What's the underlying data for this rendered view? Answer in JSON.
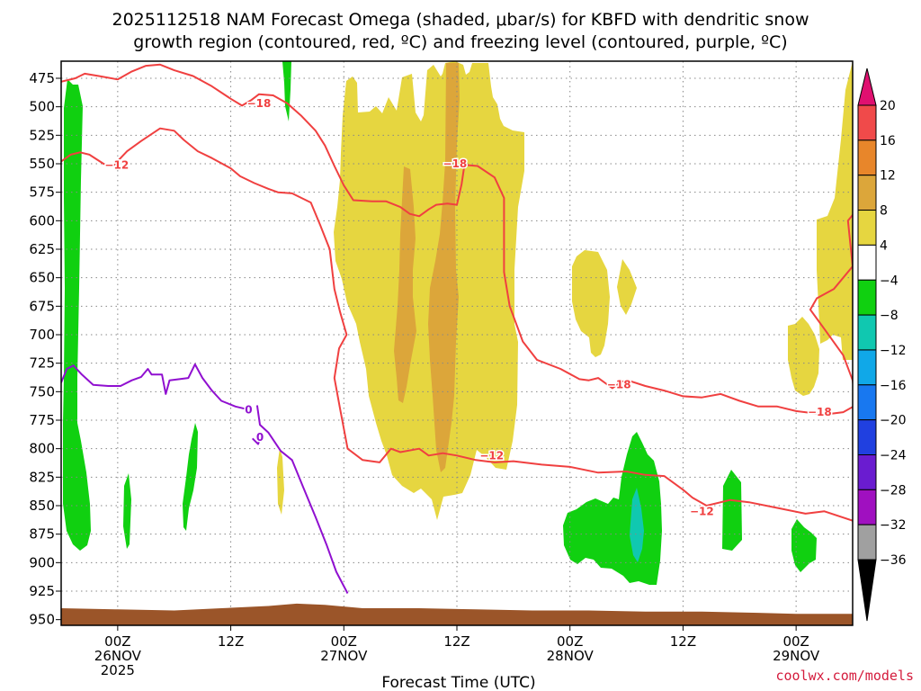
{
  "title_line1": "2025112518 NAM Forecast Omega (shaded, μbar/s) for KBFD with dendritic snow",
  "title_line2": "growth region (contoured, red, ºC) and freezing level (contoured, purple, ºC)",
  "credit": "coolwx.com/models",
  "colors": {
    "temp_contour": "#f04040",
    "freezing_contour": "#9010d0",
    "ground": "#9b5529",
    "omega_4_8": "#e6d640",
    "omega_8_12": "#dca63a",
    "omega_neg4_neg8": "#10d010",
    "omega_neg12_neg16": "#10c8b0"
  },
  "chart_data": {
    "type": "heatmap",
    "title": "2025112518 NAM Forecast Omega (shaded, μbar/s) for KBFD with dendritic snow growth region (contoured, red, ºC) and freezing level (contoured, purple, ºC)",
    "xlabel": "Forecast Time (UTC)",
    "ylabel": "",
    "x_unit": "hours after 2025-11-25 18Z",
    "xlim": [
      0,
      84
    ],
    "ylim": [
      955,
      460
    ],
    "y_scale": "pressure (hPa), inverted",
    "grid": true,
    "y_ticks": [
      "475",
      "500",
      "525",
      "550",
      "575",
      "600",
      "625",
      "650",
      "675",
      "700",
      "725",
      "750",
      "775",
      "800",
      "825",
      "850",
      "875",
      "900",
      "925",
      "950"
    ],
    "x_ticks": [
      {
        "h": 6,
        "line1": "00Z",
        "line2": "26NOV",
        "line3": "2025"
      },
      {
        "h": 18,
        "line1": "12Z",
        "line2": "",
        "line3": ""
      },
      {
        "h": 30,
        "line1": "00Z",
        "line2": "27NOV",
        "line3": ""
      },
      {
        "h": 42,
        "line1": "12Z",
        "line2": "",
        "line3": ""
      },
      {
        "h": 54,
        "line1": "00Z",
        "line2": "28NOV",
        "line3": ""
      },
      {
        "h": 66,
        "line1": "12Z",
        "line2": "",
        "line3": ""
      },
      {
        "h": 78,
        "line1": "00Z",
        "line2": "29NOV",
        "line3": ""
      }
    ],
    "colorbar": {
      "levels": [
        "20",
        "16",
        "12",
        "8",
        "4",
        "−4",
        "−8",
        "−12",
        "−16",
        "−20",
        "−24",
        "−28",
        "−32",
        "−36"
      ],
      "colors": [
        "#e01070",
        "#f04a4a",
        "#e8862a",
        "#dca63a",
        "#e6d640",
        "#ffffff",
        "#10d010",
        "#10c8b0",
        "#10a8e8",
        "#1878f0",
        "#2040e0",
        "#6a1cd0",
        "#a010c0",
        "#a0a0a0",
        "#000000"
      ]
    },
    "contour_labels": [
      {
        "text": "−18",
        "h": 21.0,
        "p": 497,
        "series": "temp"
      },
      {
        "text": "−12",
        "h": 5.9,
        "p": 551,
        "series": "temp"
      },
      {
        "text": "−18",
        "h": 41.8,
        "p": 550,
        "series": "temp"
      },
      {
        "text": "−18",
        "h": 59.2,
        "p": 744,
        "series": "temp"
      },
      {
        "text": "−18",
        "h": 80.5,
        "p": 768,
        "series": "temp"
      },
      {
        "text": "−12",
        "h": 45.7,
        "p": 806,
        "series": "temp"
      },
      {
        "text": "−12",
        "h": 68.0,
        "p": 855,
        "series": "temp"
      },
      {
        "text": "0",
        "h": 19.9,
        "p": 766,
        "series": "freezing"
      },
      {
        "text": "0",
        "h": 21.1,
        "p": 790,
        "series": "freezing"
      }
    ],
    "series": [
      {
        "kind": "temp",
        "points": [
          [
            0,
            478
          ],
          [
            1.5,
            475
          ],
          [
            2.5,
            471
          ],
          [
            4,
            473
          ],
          [
            6,
            476
          ],
          [
            7.5,
            469
          ],
          [
            9,
            464
          ],
          [
            10.5,
            463
          ],
          [
            12,
            468
          ],
          [
            14,
            473
          ],
          [
            16,
            482
          ],
          [
            18,
            493
          ],
          [
            19.2,
            499
          ],
          [
            20.2,
            494
          ],
          [
            21,
            489
          ],
          [
            22.5,
            490
          ],
          [
            24,
            497
          ],
          [
            25.5,
            508
          ],
          [
            27,
            521
          ],
          [
            28,
            534
          ],
          [
            29,
            552
          ],
          [
            30,
            569
          ],
          [
            31,
            582
          ],
          [
            33,
            583
          ],
          [
            34.5,
            583
          ],
          [
            36,
            588
          ],
          [
            37,
            594
          ],
          [
            38,
            596
          ],
          [
            39,
            590
          ],
          [
            39.8,
            586
          ],
          [
            41,
            585
          ],
          [
            42,
            586
          ],
          [
            42.5,
            568
          ],
          [
            42.8,
            551
          ],
          [
            44.2,
            552
          ],
          [
            46,
            562
          ],
          [
            47,
            580
          ],
          [
            47,
            620
          ],
          [
            47,
            645
          ],
          [
            47.6,
            675
          ],
          [
            49,
            706
          ],
          [
            50.5,
            722
          ],
          [
            53,
            730
          ],
          [
            55,
            739
          ],
          [
            56,
            740
          ],
          [
            57,
            738
          ],
          [
            58.5,
            747
          ],
          [
            59.5,
            741
          ],
          [
            60.5,
            741
          ],
          [
            62,
            745
          ],
          [
            64,
            749
          ],
          [
            66,
            754
          ],
          [
            68,
            755
          ],
          [
            70,
            752
          ],
          [
            72,
            758
          ],
          [
            74,
            763
          ],
          [
            76,
            763
          ],
          [
            78,
            767
          ],
          [
            81,
            770
          ],
          [
            83,
            768
          ],
          [
            84.3,
            762
          ]
        ]
      },
      {
        "kind": "temp",
        "points": [
          [
            0,
            548
          ],
          [
            1,
            542
          ],
          [
            2,
            540
          ],
          [
            3,
            542
          ],
          [
            4.5,
            550
          ],
          [
            5.5,
            552
          ],
          [
            7,
            539
          ],
          [
            8.5,
            530
          ],
          [
            10.5,
            519
          ],
          [
            12,
            521
          ],
          [
            13,
            529
          ],
          [
            14.5,
            539
          ],
          [
            16,
            545
          ],
          [
            18,
            554
          ],
          [
            19,
            561
          ],
          [
            20.5,
            567
          ],
          [
            22,
            572
          ],
          [
            23,
            575
          ],
          [
            24.5,
            576
          ],
          [
            26.5,
            584
          ],
          [
            27.5,
            604
          ],
          [
            28.5,
            625
          ],
          [
            29,
            660
          ],
          [
            29.6,
            680
          ],
          [
            30.3,
            700
          ],
          [
            29.5,
            712
          ],
          [
            29,
            738
          ],
          [
            29.6,
            765
          ],
          [
            30.4,
            800
          ],
          [
            32,
            810
          ],
          [
            33.8,
            812
          ],
          [
            35,
            800
          ],
          [
            36,
            803
          ],
          [
            38,
            800
          ],
          [
            39,
            806
          ],
          [
            40.5,
            804
          ],
          [
            42,
            806
          ],
          [
            44,
            810
          ],
          [
            46,
            812
          ],
          [
            48,
            811
          ],
          [
            51,
            814
          ],
          [
            54,
            816
          ],
          [
            57,
            821
          ],
          [
            60,
            820
          ],
          [
            62,
            823
          ],
          [
            64,
            824
          ],
          [
            66,
            836
          ],
          [
            67,
            843
          ],
          [
            68.5,
            850
          ],
          [
            71,
            845
          ],
          [
            73,
            847
          ],
          [
            76,
            852
          ],
          [
            79,
            857
          ],
          [
            81,
            855
          ],
          [
            84.3,
            864
          ]
        ]
      },
      {
        "kind": "temp",
        "points": [
          [
            84.3,
            592
          ],
          [
            83.5,
            600
          ],
          [
            84.0,
            640
          ],
          [
            82,
            660
          ],
          [
            80.2,
            668
          ],
          [
            79.5,
            678
          ],
          [
            81,
            695
          ],
          [
            83,
            718
          ],
          [
            84,
            740
          ],
          [
            84.3,
            760
          ]
        ]
      },
      {
        "kind": "freezing",
        "points": [
          [
            0,
            742
          ],
          [
            0.6,
            730
          ],
          [
            1.3,
            727
          ],
          [
            2.2,
            735
          ],
          [
            3.4,
            744
          ],
          [
            5,
            745
          ],
          [
            6.3,
            745
          ],
          [
            7.5,
            740
          ],
          [
            8.5,
            737
          ],
          [
            9.2,
            730
          ],
          [
            9.6,
            735
          ],
          [
            10.7,
            735
          ],
          [
            11.1,
            752
          ],
          [
            11.5,
            740
          ],
          [
            13.5,
            738
          ],
          [
            14.2,
            726
          ],
          [
            15,
            738
          ],
          [
            16,
            749
          ],
          [
            17,
            758
          ],
          [
            18.5,
            763
          ],
          [
            19.5,
            765
          ]
        ]
      },
      {
        "kind": "freezing",
        "points": [
          [
            20.8,
            762
          ],
          [
            21.1,
            779
          ],
          [
            22,
            786
          ],
          [
            23.3,
            802
          ],
          [
            24.5,
            810
          ],
          [
            25.7,
            834
          ],
          [
            27,
            860
          ],
          [
            28.2,
            885
          ],
          [
            29.2,
            908
          ],
          [
            30.4,
            927
          ]
        ]
      },
      {
        "kind": "freezing",
        "points": [
          [
            20.3,
            791
          ],
          [
            20.9,
            796
          ],
          [
            21.2,
            789
          ]
        ]
      }
    ],
    "ground_surface": [
      [
        -0.2,
        940
      ],
      [
        6,
        941
      ],
      [
        12,
        942
      ],
      [
        17,
        940
      ],
      [
        22,
        938
      ],
      [
        25,
        936
      ],
      [
        28,
        937
      ],
      [
        32,
        940
      ],
      [
        38,
        940
      ],
      [
        44,
        941
      ],
      [
        50,
        942
      ],
      [
        56,
        942
      ],
      [
        62,
        943
      ],
      [
        68,
        943
      ],
      [
        74,
        944
      ],
      [
        78,
        945
      ],
      [
        84.3,
        945
      ]
    ]
  }
}
